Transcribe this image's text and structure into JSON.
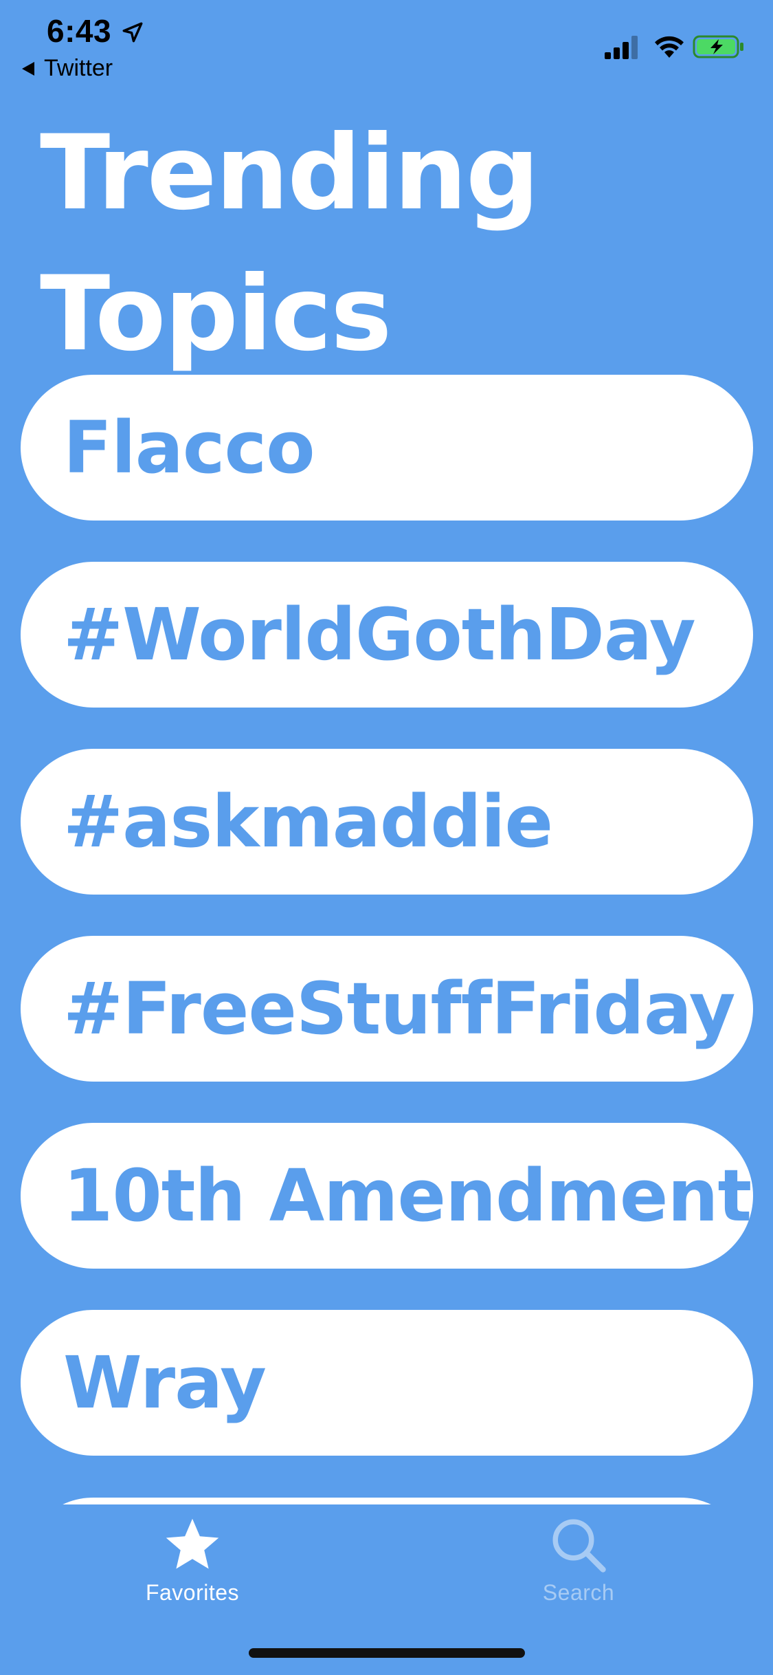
{
  "status_bar": {
    "time": "6:43",
    "back_label": "Twitter"
  },
  "page_title": {
    "line1": "Trending",
    "line2": "Topics"
  },
  "topics": [
    "Flacco",
    "#WorldGothDay",
    "#askmaddie",
    "#FreeStuffFriday",
    "10th Amendment",
    "Wray"
  ],
  "tab_bar": {
    "favorites_label": "Favorites",
    "search_label": "Search",
    "active_tab": "Favorites"
  },
  "colors": {
    "background": "#5a9eec",
    "pill": "#ffffff",
    "topic_text": "#5a9eec",
    "inactive_tab": "#a7cbf4"
  }
}
